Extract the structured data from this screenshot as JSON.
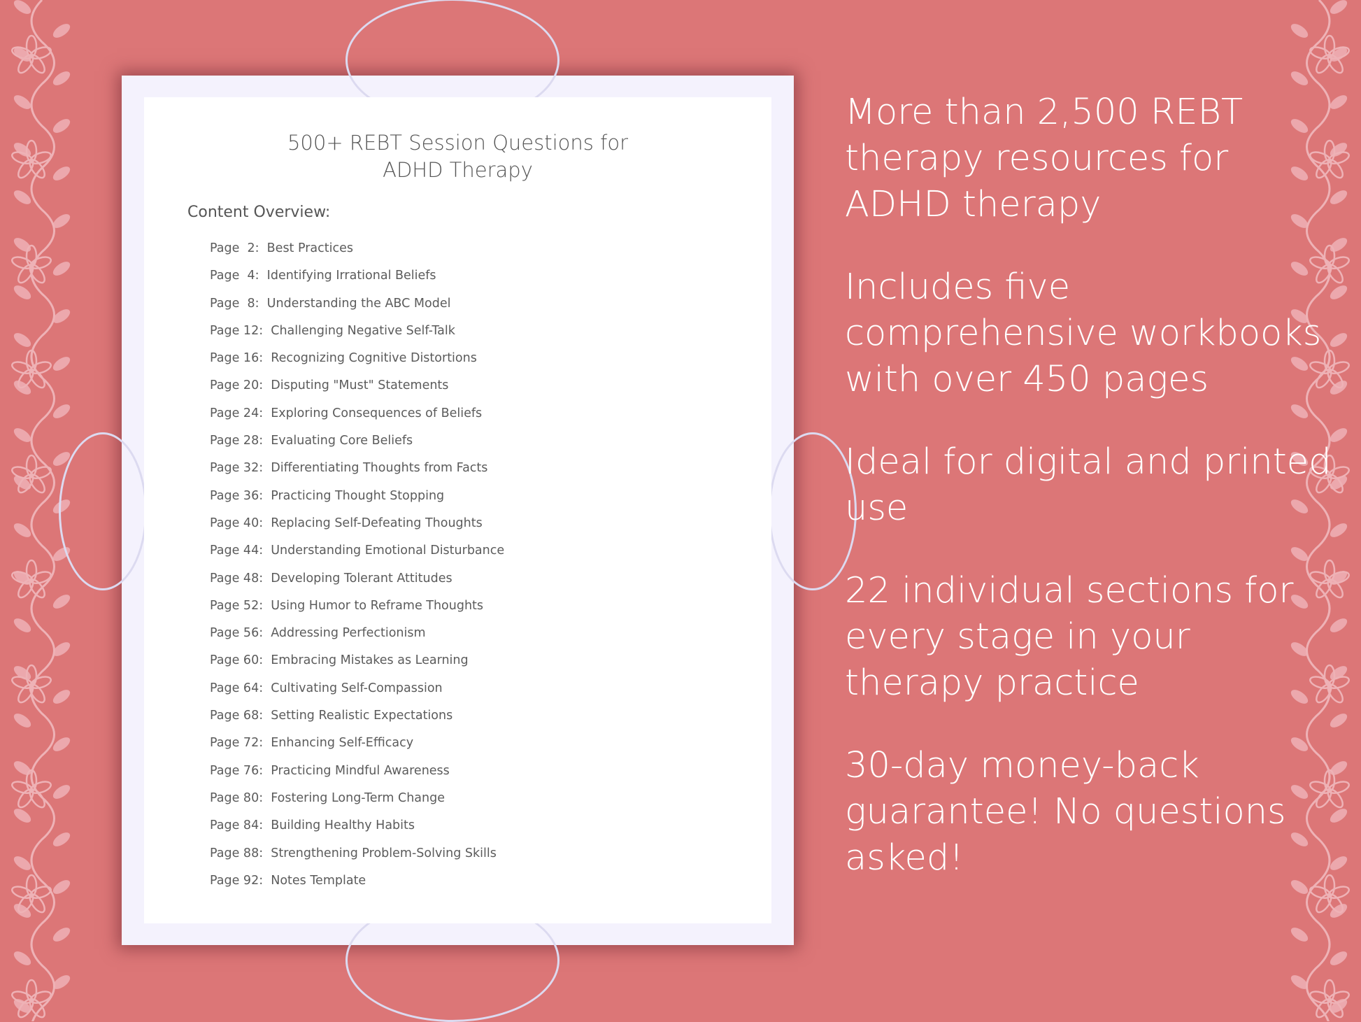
{
  "colors": {
    "background": "#dc7677",
    "document_border": "#f4f2fd",
    "document_page": "#ffffff",
    "floral": "#eeb2b6"
  },
  "document": {
    "title_line1": "500+ REBT Session Questions for",
    "title_line2": "ADHD Therapy",
    "overview_label": "Content Overview:",
    "items": [
      {
        "page": "Page  2:",
        "label": "Best Practices"
      },
      {
        "page": "Page  4:",
        "label": "Identifying Irrational Beliefs"
      },
      {
        "page": "Page  8:",
        "label": "Understanding the ABC Model"
      },
      {
        "page": "Page 12:",
        "label": "Challenging Negative Self-Talk"
      },
      {
        "page": "Page 16:",
        "label": "Recognizing Cognitive Distortions"
      },
      {
        "page": "Page 20:",
        "label": "Disputing \"Must\" Statements"
      },
      {
        "page": "Page 24:",
        "label": "Exploring Consequences of Beliefs"
      },
      {
        "page": "Page 28:",
        "label": "Evaluating Core Beliefs"
      },
      {
        "page": "Page 32:",
        "label": "Differentiating Thoughts from Facts"
      },
      {
        "page": "Page 36:",
        "label": "Practicing Thought Stopping"
      },
      {
        "page": "Page 40:",
        "label": "Replacing Self-Defeating Thoughts"
      },
      {
        "page": "Page 44:",
        "label": "Understanding Emotional Disturbance"
      },
      {
        "page": "Page 48:",
        "label": "Developing Tolerant Attitudes"
      },
      {
        "page": "Page 52:",
        "label": "Using Humor to Reframe Thoughts"
      },
      {
        "page": "Page 56:",
        "label": "Addressing Perfectionism"
      },
      {
        "page": "Page 60:",
        "label": "Embracing Mistakes as Learning"
      },
      {
        "page": "Page 64:",
        "label": "Cultivating Self-Compassion"
      },
      {
        "page": "Page 68:",
        "label": "Setting Realistic Expectations"
      },
      {
        "page": "Page 72:",
        "label": "Enhancing Self-Efficacy"
      },
      {
        "page": "Page 76:",
        "label": "Practicing Mindful Awareness"
      },
      {
        "page": "Page 80:",
        "label": "Fostering Long-Term Change"
      },
      {
        "page": "Page 84:",
        "label": "Building Healthy Habits"
      },
      {
        "page": "Page 88:",
        "label": "Strengthening Problem-Solving Skills"
      },
      {
        "page": "Page 92:",
        "label": "Notes Template"
      }
    ]
  },
  "features": [
    "More than 2,500 REBT therapy resources for ADHD therapy",
    "Includes five comprehensive workbooks with over 450 pages",
    "Ideal for digital and printed use",
    "22 individual sections for every stage in your therapy practice",
    "30-day money-back guarantee! No questions asked!"
  ]
}
